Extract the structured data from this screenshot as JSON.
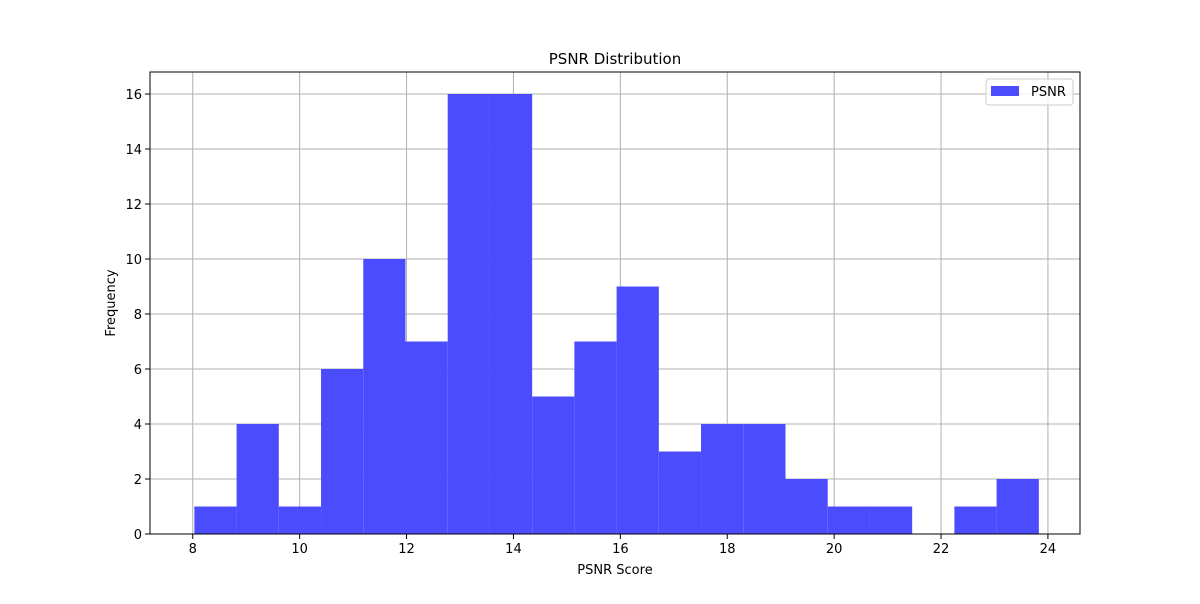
{
  "chart_data": {
    "type": "bar",
    "subtype": "histogram",
    "title": "PSNR Distribution",
    "xlabel": "PSNR Score",
    "ylabel": "Frequency",
    "xlim": [
      7.2,
      24.6
    ],
    "ylim": [
      0,
      16.8
    ],
    "xticks": [
      8,
      10,
      12,
      14,
      16,
      18,
      20,
      22,
      24
    ],
    "yticks": [
      0,
      2,
      4,
      6,
      8,
      10,
      12,
      14,
      16
    ],
    "bin_edges": [
      8.03,
      8.82,
      9.61,
      10.4,
      11.19,
      11.98,
      12.77,
      13.56,
      14.35,
      15.14,
      15.93,
      16.72,
      17.51,
      18.3,
      19.09,
      19.88,
      20.67,
      21.46,
      22.25,
      23.04,
      23.83
    ],
    "series": [
      {
        "name": "PSNR",
        "values": [
          1,
          4,
          1,
          6,
          10,
          7,
          16,
          16,
          5,
          7,
          9,
          3,
          4,
          4,
          2,
          1,
          1,
          0,
          1,
          2
        ],
        "color": "#4c4cff"
      }
    ],
    "grid": true,
    "legend_position": "upper right"
  }
}
